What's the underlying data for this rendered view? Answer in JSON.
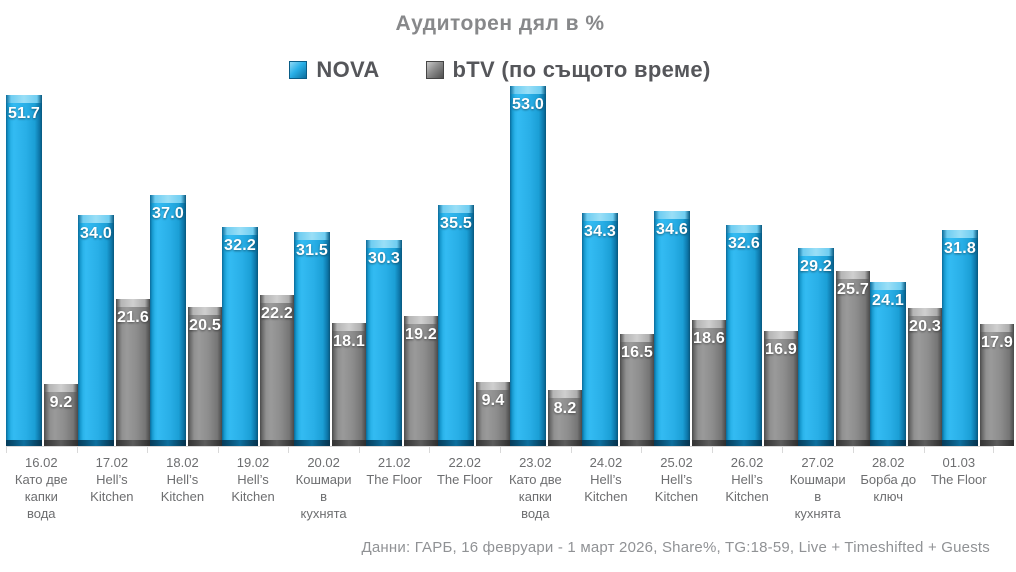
{
  "chart_data": {
    "type": "bar",
    "title": "Аудиторен дял в %",
    "legend_position": "top",
    "grid": false,
    "ylim": [
      0,
      53
    ],
    "value_labels": true,
    "series": [
      {
        "name": "NOVA",
        "color": "#29b0e8",
        "values": [
          51.7,
          34.0,
          37.0,
          32.2,
          31.5,
          30.3,
          35.5,
          53.0,
          34.3,
          34.6,
          32.6,
          29.2,
          24.1,
          31.8
        ]
      },
      {
        "name": "bTV (по същото време)",
        "color": "#8c8c8c",
        "values": [
          9.2,
          21.6,
          20.5,
          22.2,
          18.1,
          19.2,
          9.4,
          8.2,
          16.5,
          18.6,
          16.9,
          25.7,
          20.3,
          17.9
        ]
      }
    ],
    "categories": [
      {
        "date": "16.02",
        "show": "Като две\nкапки\nвода"
      },
      {
        "date": "17.02",
        "show": "Hell’s\nKitchen"
      },
      {
        "date": "18.02",
        "show": "Hell’s\nKitchen"
      },
      {
        "date": "19.02",
        "show": "Hell’s\nKitchen"
      },
      {
        "date": "20.02",
        "show": "Кошмари\nв\nкухнята"
      },
      {
        "date": "21.02",
        "show": "The Floor"
      },
      {
        "date": "22.02",
        "show": "The Floor"
      },
      {
        "date": "23.02",
        "show": "Като две\nкапки\nвода"
      },
      {
        "date": "24.02",
        "show": "Hell’s\nKitchen"
      },
      {
        "date": "25.02",
        "show": "Hell’s\nKitchen"
      },
      {
        "date": "26.02",
        "show": "Hell’s\nKitchen"
      },
      {
        "date": "27.02",
        "show": "Кошмари\nв\nкухнята"
      },
      {
        "date": "28.02",
        "show": "Борба до\nключ"
      },
      {
        "date": "01.03",
        "show": "The Floor"
      }
    ]
  },
  "footer": {
    "note": "Данни: ГАРБ, 16 февруари - 1 март 2026, Share%, TG:18-59, Live + Timeshifted + Guests"
  }
}
